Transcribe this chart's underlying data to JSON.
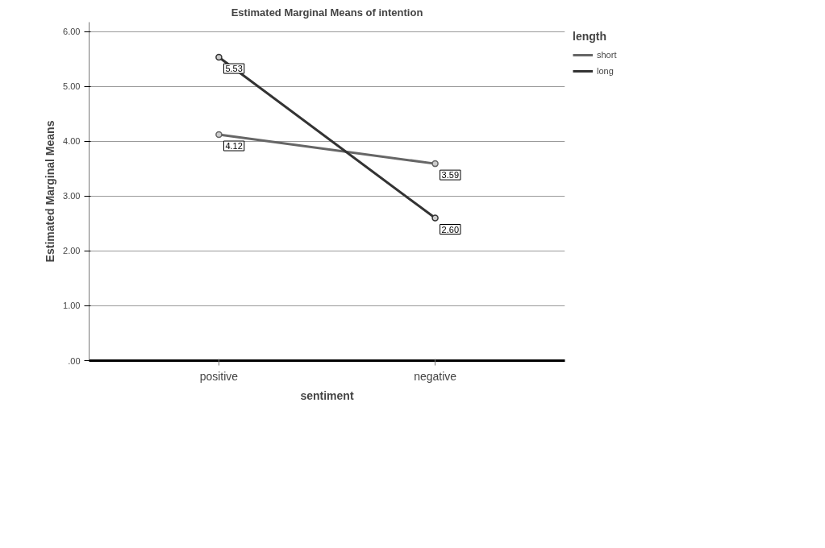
{
  "chart_data": {
    "type": "line",
    "title": "Estimated Marginal Means of intention",
    "xlabel": "sentiment",
    "ylabel": "Estimated Marginal Means",
    "legend_title": "length",
    "categories": [
      "positive",
      "negative"
    ],
    "series": [
      {
        "name": "short",
        "color": "#666666",
        "values": [
          4.12,
          3.59
        ],
        "value_labels": [
          "4.12",
          "3.59"
        ]
      },
      {
        "name": "long",
        "color": "#333333",
        "values": [
          5.53,
          2.6
        ],
        "value_labels": [
          "5.53",
          "2.60"
        ]
      }
    ],
    "ylim": [
      0,
      6.17
    ],
    "yticks": [
      {
        "value": 0,
        "label": ".00"
      },
      {
        "value": 1,
        "label": "1.00"
      },
      {
        "value": 2,
        "label": "2.00"
      },
      {
        "value": 3,
        "label": "3.00"
      },
      {
        "value": 4,
        "label": "4.00"
      },
      {
        "value": 5,
        "label": "5.00"
      },
      {
        "value": 6,
        "label": "6.00"
      }
    ],
    "grid": "y",
    "legend": "top right",
    "marker": "circle",
    "line_style": "solid"
  }
}
